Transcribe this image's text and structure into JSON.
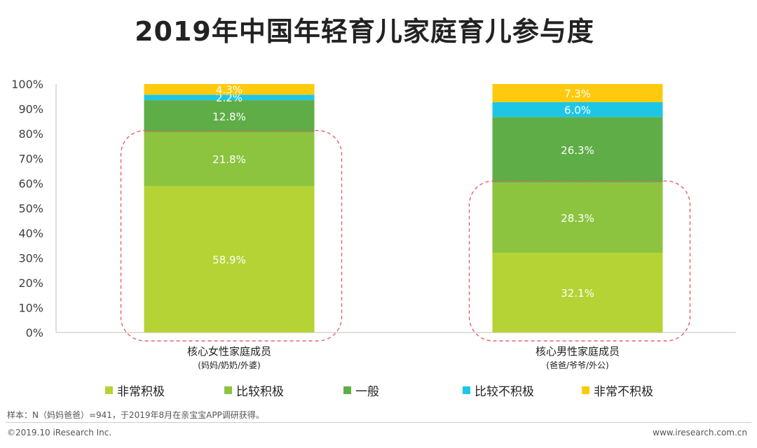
{
  "chart_data": {
    "type": "bar",
    "stacked": true,
    "title": "2019年中国年轻育儿家庭育儿参与度",
    "categories": [
      {
        "label": "核心女性家庭成员",
        "sublabel": "(妈妈/奶奶/外婆)"
      },
      {
        "label": "核心男性家庭成员",
        "sublabel": "(爸爸/爷爷/外公)"
      }
    ],
    "series": [
      {
        "name": "非常积极",
        "color": "#b5d334",
        "values": [
          58.9,
          32.1
        ]
      },
      {
        "name": "比较积极",
        "color": "#8cc43f",
        "values": [
          21.8,
          28.3
        ]
      },
      {
        "name": "一般",
        "color": "#5fad46",
        "values": [
          12.8,
          26.3
        ]
      },
      {
        "name": "比较不积极",
        "color": "#1ec6e6",
        "values": [
          2.2,
          6.0
        ]
      },
      {
        "name": "非常不积极",
        "color": "#ffc90e",
        "values": [
          4.3,
          7.3
        ]
      }
    ],
    "value_labels": [
      [
        "58.9%",
        "21.8%",
        "12.8%",
        "2.2%",
        "4.3%"
      ],
      [
        "32.1%",
        "28.3%",
        "26.3%",
        "6.0%",
        "7.3%"
      ]
    ],
    "yticks": [
      "0%",
      "10%",
      "20%",
      "30%",
      "40%",
      "50%",
      "60%",
      "70%",
      "80%",
      "90%",
      "100%"
    ],
    "ylim": [
      0,
      100
    ],
    "highlight_ranges": [
      [
        0,
        80.7
      ],
      [
        0,
        60.4
      ]
    ],
    "highlight_color": "#e8606a",
    "legend_position": "bottom"
  },
  "footnote": "样本：N（妈妈爸爸）=941，于2019年8月在亲宝宝APP调研获得。",
  "copyright": "©2019.10 iResearch Inc.",
  "website": "www.iresearch.com.cn"
}
